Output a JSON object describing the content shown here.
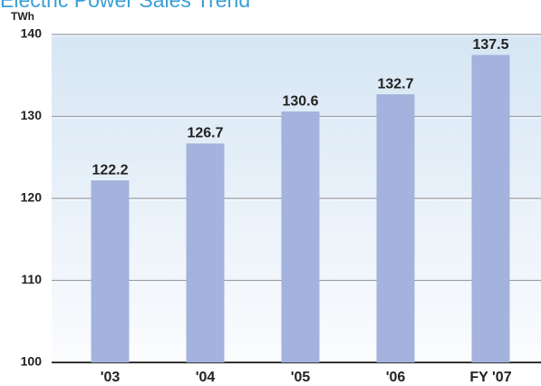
{
  "chart_data": {
    "type": "bar",
    "title": "Electric Power Sales Trend",
    "y_axis_label": "TWh",
    "categories": [
      "'03",
      "'04",
      "'05",
      "'06",
      "FY '07"
    ],
    "values": [
      122.2,
      126.7,
      130.6,
      132.7,
      137.5
    ],
    "color": "#a3b3dd",
    "ylim": [
      100,
      140
    ],
    "yticks": [
      100,
      110,
      120,
      130,
      140
    ],
    "grid": true
  }
}
